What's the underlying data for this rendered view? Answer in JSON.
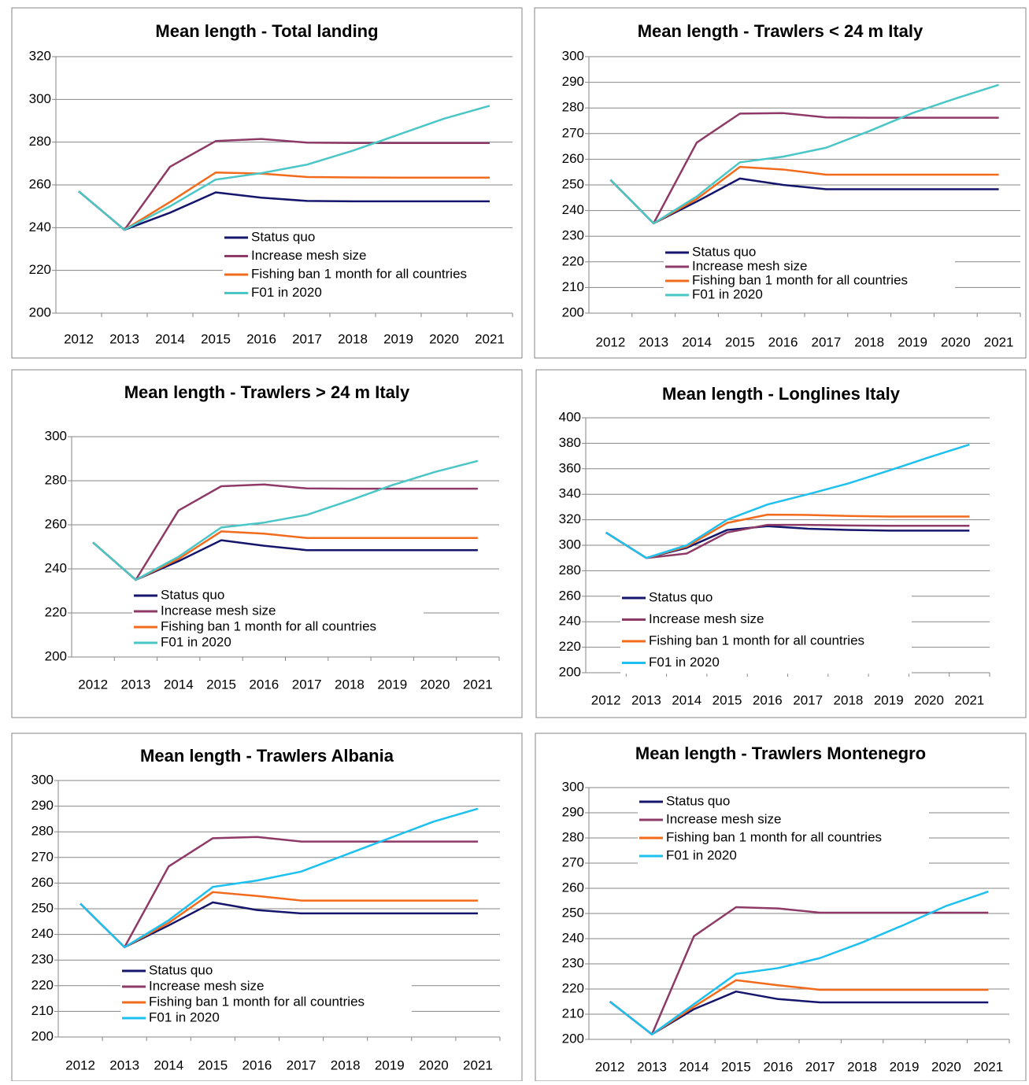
{
  "chart_data": [
    {
      "type": "line",
      "title": "Mean length - Total landing",
      "categories": [
        "2012",
        "2013",
        "2014",
        "2015",
        "2016",
        "2017",
        "2018",
        "2019",
        "2020",
        "2021"
      ],
      "series": [
        {
          "name": "Status quo",
          "color": "#15156b",
          "values": [
            257,
            239,
            247,
            256.5,
            254,
            252.5,
            252.3,
            252.3,
            252.3,
            252.3
          ]
        },
        {
          "name": "Increase mesh size",
          "color": "#8e3a66",
          "values": [
            257,
            239,
            268.5,
            280.5,
            281.5,
            279.8,
            279.6,
            279.6,
            279.6,
            279.6
          ]
        },
        {
          "name": "Fishing ban 1 month for all countries",
          "color": "#f26b1d",
          "values": [
            257,
            239,
            252,
            265.8,
            265.3,
            263.7,
            263.5,
            263.4,
            263.4,
            263.4
          ]
        },
        {
          "name": "F01 in 2020",
          "color": "#4bc6c6",
          "values": [
            257,
            239,
            250,
            262.5,
            265.5,
            269.5,
            276,
            283.5,
            291,
            297
          ]
        }
      ],
      "ylim": [
        200,
        320
      ],
      "yticks": [
        200,
        220,
        240,
        260,
        280,
        300,
        320
      ],
      "grid": true
    },
    {
      "type": "line",
      "title": "Mean length - Trawlers < 24 m Italy",
      "categories": [
        "2012",
        "2013",
        "2014",
        "2015",
        "2016",
        "2017",
        "2018",
        "2019",
        "2020",
        "2021"
      ],
      "series": [
        {
          "name": "Status quo",
          "color": "#15156b",
          "values": [
            252,
            235,
            243.5,
            252.5,
            250,
            248.3,
            248.3,
            248.3,
            248.3,
            248.3
          ]
        },
        {
          "name": "Increase mesh size",
          "color": "#8e3a66",
          "values": [
            252,
            235,
            266.5,
            277.8,
            278,
            276.3,
            276.2,
            276.2,
            276.2,
            276.2
          ]
        },
        {
          "name": "Fishing ban 1 month for all countries",
          "color": "#f26b1d",
          "values": [
            252,
            235,
            244.5,
            257,
            256,
            254,
            254,
            254,
            254,
            254
          ]
        },
        {
          "name": "F01 in 2020",
          "color": "#4bc6c6",
          "values": [
            252,
            235,
            245.5,
            258.8,
            261,
            264.5,
            271,
            278,
            283.7,
            289
          ]
        }
      ],
      "ylim": [
        200,
        300
      ],
      "yticks": [
        200,
        210,
        220,
        230,
        240,
        250,
        260,
        270,
        280,
        290,
        300
      ],
      "grid": true
    },
    {
      "type": "line",
      "title": "Mean length - Trawlers > 24 m Italy",
      "categories": [
        "2012",
        "2013",
        "2014",
        "2015",
        "2016",
        "2017",
        "2018",
        "2019",
        "2020",
        "2021"
      ],
      "series": [
        {
          "name": "Status quo",
          "color": "#15156b",
          "values": [
            252,
            235,
            243.5,
            253,
            250.5,
            248.5,
            248.5,
            248.5,
            248.5,
            248.5
          ]
        },
        {
          "name": "Increase mesh size",
          "color": "#8e3a66",
          "values": [
            252,
            235,
            266.5,
            277.5,
            278.3,
            276.5,
            276.4,
            276.4,
            276.4,
            276.4
          ]
        },
        {
          "name": "Fishing ban 1 month for all countries",
          "color": "#f26b1d",
          "values": [
            252,
            235,
            244.5,
            257,
            256,
            254,
            254,
            254,
            254,
            254
          ]
        },
        {
          "name": "F01 in 2020",
          "color": "#4bc6c6",
          "values": [
            252,
            235,
            245.5,
            258.8,
            261,
            264.5,
            271,
            278,
            284,
            289
          ]
        }
      ],
      "ylim": [
        200,
        300
      ],
      "yticks": [
        200,
        220,
        240,
        260,
        280,
        300
      ],
      "grid": true
    },
    {
      "type": "line",
      "title": "Mean length - Longlines Italy",
      "categories": [
        "2012",
        "2013",
        "2014",
        "2015",
        "2016",
        "2017",
        "2018",
        "2019",
        "2020",
        "2021"
      ],
      "series": [
        {
          "name": "Status quo",
          "color": "#15156b",
          "values": [
            310,
            290,
            298,
            312,
            315,
            313,
            312,
            311.5,
            311.5,
            311.5
          ]
        },
        {
          "name": "Increase mesh size",
          "color": "#8e3a66",
          "values": [
            310,
            290,
            293.5,
            310,
            316,
            316,
            315.5,
            315.3,
            315.3,
            315.3
          ]
        },
        {
          "name": "Fishing ban 1 month for all countries",
          "color": "#f26b1d",
          "values": [
            310,
            290,
            299,
            317.5,
            324,
            323.8,
            323,
            322.5,
            322.5,
            322.5
          ]
        },
        {
          "name": "F01 in 2020",
          "color": "#1ec0f0",
          "values": [
            310,
            290,
            300,
            320,
            332,
            340,
            348.5,
            358.5,
            369,
            379
          ]
        }
      ],
      "ylim": [
        200,
        400
      ],
      "yticks": [
        200,
        220,
        240,
        260,
        280,
        300,
        320,
        340,
        360,
        380,
        400
      ],
      "grid": true
    },
    {
      "type": "line",
      "title": "Mean length - Trawlers Albania",
      "categories": [
        "2012",
        "2013",
        "2014",
        "2015",
        "2016",
        "2017",
        "2018",
        "2019",
        "2020",
        "2021"
      ],
      "series": [
        {
          "name": "Status quo",
          "color": "#15156b",
          "values": [
            252,
            235,
            243.5,
            252.5,
            249.5,
            248.2,
            248.2,
            248.2,
            248.2,
            248.2
          ]
        },
        {
          "name": "Increase mesh size",
          "color": "#8e3a66",
          "values": [
            252,
            235,
            266.5,
            277.5,
            278,
            276.2,
            276.2,
            276.2,
            276.2,
            276.2
          ]
        },
        {
          "name": "Fishing ban 1 month for all countries",
          "color": "#f26b1d",
          "values": [
            252,
            235,
            244.5,
            256.5,
            255,
            253.2,
            253.2,
            253.2,
            253.2,
            253.2
          ]
        },
        {
          "name": "F01 in 2020",
          "color": "#1ec0f0",
          "values": [
            252,
            235,
            245.5,
            258.5,
            261,
            264.5,
            271,
            277.5,
            284,
            289
          ]
        }
      ],
      "ylim": [
        200,
        300
      ],
      "yticks": [
        200,
        210,
        220,
        230,
        240,
        250,
        260,
        270,
        280,
        290,
        300
      ],
      "grid": true
    },
    {
      "type": "line",
      "title": "Mean length - Trawlers Montenegro",
      "categories": [
        "2012",
        "2013",
        "2014",
        "2015",
        "2016",
        "2017",
        "2018",
        "2019",
        "2020",
        "2021"
      ],
      "series": [
        {
          "name": "Status quo",
          "color": "#15156b",
          "values": [
            215,
            202,
            212,
            219,
            216,
            214.7,
            214.7,
            214.7,
            214.7,
            214.7
          ]
        },
        {
          "name": "Increase mesh size",
          "color": "#8e3a66",
          "values": [
            215,
            202,
            241,
            252.5,
            252,
            250.3,
            250.3,
            250.3,
            250.3,
            250.3
          ]
        },
        {
          "name": "Fishing ban 1 month for all countries",
          "color": "#f26b1d",
          "values": [
            215,
            202,
            213,
            223.5,
            221.5,
            219.7,
            219.7,
            219.7,
            219.7,
            219.7
          ]
        },
        {
          "name": "F01 in 2020",
          "color": "#1ec0f0",
          "values": [
            215,
            202,
            214,
            226,
            228.3,
            232.3,
            238.5,
            245.5,
            253,
            258.7
          ]
        }
      ],
      "ylim": [
        200,
        300
      ],
      "yticks": [
        200,
        210,
        220,
        230,
        240,
        250,
        260,
        270,
        280,
        290,
        300
      ],
      "grid": true
    }
  ]
}
